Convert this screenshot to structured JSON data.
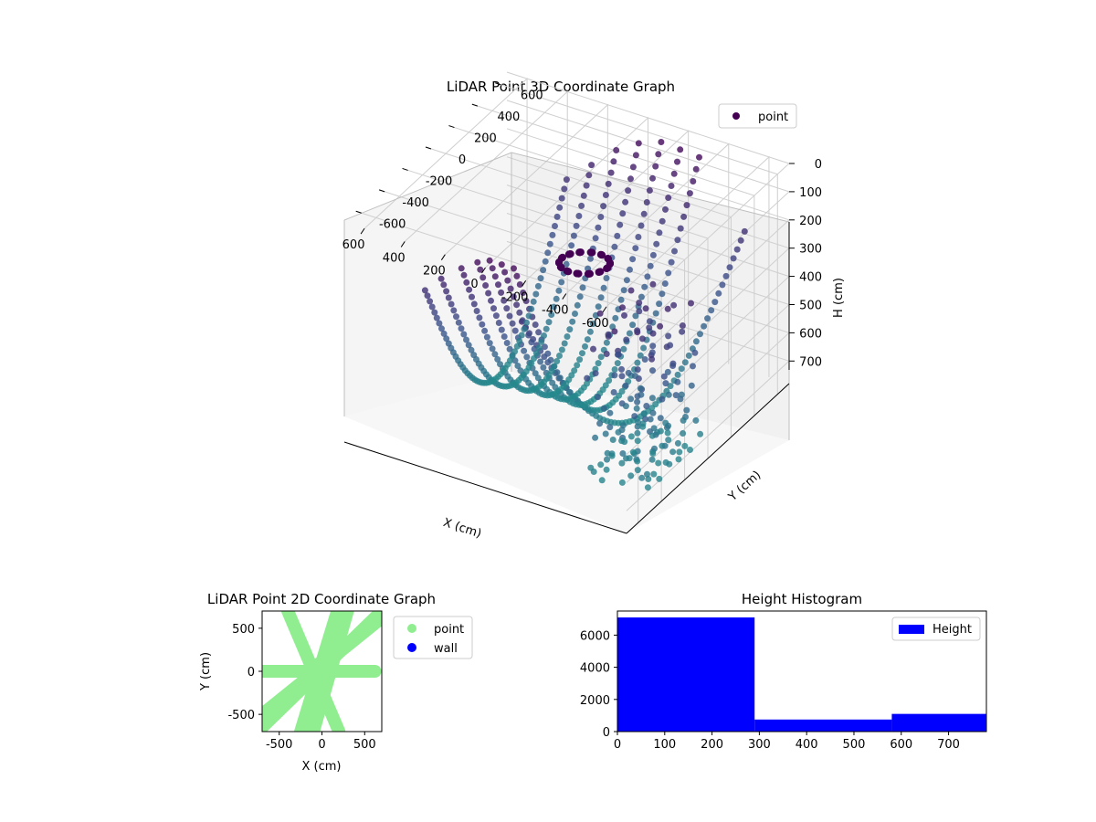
{
  "chart_data": [
    {
      "type": "scatter",
      "title": "LiDAR Point 3D Coordinate Graph",
      "xlabel": "X (cm)",
      "ylabel": "Y (cm)",
      "zlabel": "H (cm)",
      "xlim": [
        -700,
        700
      ],
      "ylim": [
        -700,
        700
      ],
      "zlim": [
        0,
        780
      ],
      "z_inverted": true,
      "x_ticks": [
        "-600",
        "-400",
        "-200",
        "0",
        "200",
        "400",
        "600"
      ],
      "y_ticks": [
        "-600",
        "-400",
        "-200",
        "0",
        "200",
        "400",
        "600"
      ],
      "z_ticks": [
        "0",
        "100",
        "200",
        "300",
        "400",
        "500",
        "600",
        "700"
      ],
      "grid": true,
      "legend": "top-right",
      "colormap": [
        "#440154",
        "#3b528b",
        "#21918c"
      ],
      "series": [
        {
          "name": "point"
        }
      ]
    },
    {
      "type": "scatter",
      "title": "LiDAR Point 2D Coordinate Graph",
      "xlabel": "X (cm)",
      "ylabel": "Y (cm)",
      "xlim": [
        -700,
        700
      ],
      "ylim": [
        -700,
        700
      ],
      "x_ticks": [
        "-500",
        "0",
        "500"
      ],
      "y_ticks": [
        "500",
        "0",
        "-500"
      ],
      "legend": "outside-right",
      "series": [
        {
          "name": "point",
          "color": "#90ee90"
        },
        {
          "name": "wall",
          "color": "#0000ff"
        }
      ]
    },
    {
      "type": "bar",
      "title": "Height Histogram",
      "xlim": [
        0,
        780
      ],
      "ylim": [
        0,
        7500
      ],
      "x_ticks": [
        "0",
        "100",
        "200",
        "300",
        "400",
        "500",
        "600",
        "700"
      ],
      "y_ticks": [
        "0",
        "2000",
        "4000",
        "6000"
      ],
      "legend": "top-right",
      "bins": [
        {
          "start": 0,
          "end": 290,
          "count": 7100
        },
        {
          "start": 290,
          "end": 580,
          "count": 750
        },
        {
          "start": 580,
          "end": 780,
          "count": 1100
        }
      ],
      "series": [
        {
          "name": "Height",
          "color": "#0000ff"
        }
      ]
    }
  ]
}
